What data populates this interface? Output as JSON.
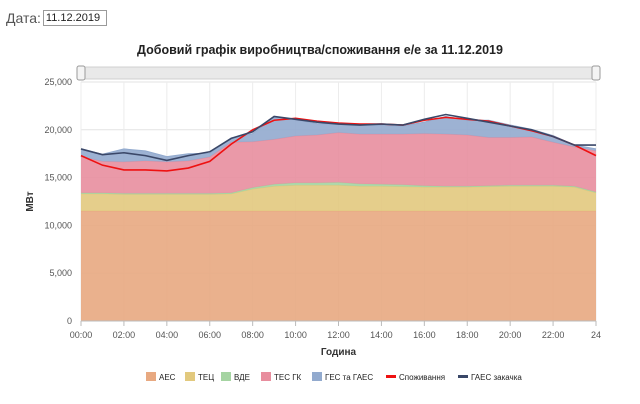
{
  "date_filter": {
    "label": "Дата:",
    "value": "11.12.2019"
  },
  "chart_data": {
    "type": "area",
    "title": "Добовий графік виробництва/споживання е/е за 11.12.2019",
    "xlabel": "Година",
    "ylabel": "МВт",
    "ylim": [
      0,
      25000
    ],
    "yticks": [
      0,
      5000,
      10000,
      15000,
      20000,
      25000
    ],
    "ytick_labels": [
      "0",
      "5,000",
      "10,000",
      "15,000",
      "20,000",
      "25,000"
    ],
    "xticks": [
      0,
      2,
      4,
      6,
      8,
      10,
      12,
      14,
      16,
      18,
      20,
      22,
      24
    ],
    "xtick_labels": [
      "00:00",
      "02:00",
      "04:00",
      "06:00",
      "08:00",
      "10:00",
      "12:00",
      "14:00",
      "16:00",
      "18:00",
      "20:00",
      "22:00",
      "24"
    ],
    "grid": true,
    "legend_position": "bottom",
    "x": [
      0,
      1,
      2,
      3,
      4,
      5,
      6,
      7,
      8,
      9,
      10,
      11,
      12,
      13,
      14,
      15,
      16,
      17,
      18,
      19,
      20,
      21,
      22,
      23,
      24
    ],
    "stacked_series": [
      {
        "name": "АЕС",
        "color": "#e8a981",
        "values": [
          11500,
          11500,
          11500,
          11500,
          11500,
          11500,
          11500,
          11500,
          11500,
          11500,
          11500,
          11500,
          11500,
          11500,
          11500,
          11500,
          11500,
          11500,
          11500,
          11500,
          11500,
          11500,
          11500,
          11500,
          11500
        ]
      },
      {
        "name": "ТЕЦ",
        "color": "#e2c97e",
        "values": [
          1800,
          1800,
          1750,
          1750,
          1750,
          1750,
          1750,
          1800,
          2300,
          2600,
          2700,
          2700,
          2700,
          2600,
          2600,
          2550,
          2500,
          2500,
          2500,
          2550,
          2600,
          2600,
          2600,
          2500,
          1900
        ]
      },
      {
        "name": "ВДЕ",
        "color": "#a5d4a2",
        "values": [
          100,
          100,
          100,
          100,
          100,
          100,
          100,
          100,
          150,
          200,
          250,
          250,
          300,
          250,
          200,
          200,
          150,
          100,
          100,
          100,
          100,
          100,
          100,
          100,
          100
        ]
      },
      {
        "name": "ТЕС ГК",
        "color": "#e88e9e",
        "values": [
          3800,
          3300,
          3300,
          3400,
          3300,
          3400,
          3800,
          5300,
          4800,
          4700,
          4900,
          5000,
          5200,
          5200,
          5250,
          5300,
          5450,
          5450,
          5350,
          5050,
          5000,
          5050,
          4500,
          4100,
          4300
        ]
      },
      {
        "name": "ГЕС та ГАЕС",
        "color": "#92aace",
        "values": [
          800,
          750,
          1350,
          1050,
          550,
          750,
          400,
          450,
          850,
          2300,
          1700,
          1200,
          900,
          950,
          900,
          850,
          1200,
          1850,
          1550,
          1800,
          1300,
          800,
          700,
          200,
          200
        ]
      }
    ],
    "line_series": [
      {
        "name": "Споживання",
        "color": "#ee1111",
        "values": [
          17300,
          16300,
          15800,
          15800,
          15700,
          16000,
          16700,
          18500,
          20000,
          21000,
          21200,
          20900,
          20700,
          20600,
          20600,
          20500,
          21000,
          21300,
          21100,
          20900,
          20400,
          19900,
          19300,
          18400,
          17300
        ]
      },
      {
        "name": "ГАЕС закачка",
        "color": "#3a4768",
        "values": [
          18000,
          17400,
          17600,
          17300,
          16800,
          17300,
          17700,
          19100,
          19800,
          21400,
          21100,
          20800,
          20600,
          20500,
          20600,
          20500,
          21100,
          21600,
          21200,
          20800,
          20400,
          20000,
          19300,
          18400,
          18400
        ]
      }
    ],
    "legend": [
      "АЕС",
      "ТЕЦ",
      "ВДЕ",
      "ТЕС ГК",
      "ГЕС та ГАЕС",
      "Споживання",
      "ГАЕС закачка"
    ]
  }
}
